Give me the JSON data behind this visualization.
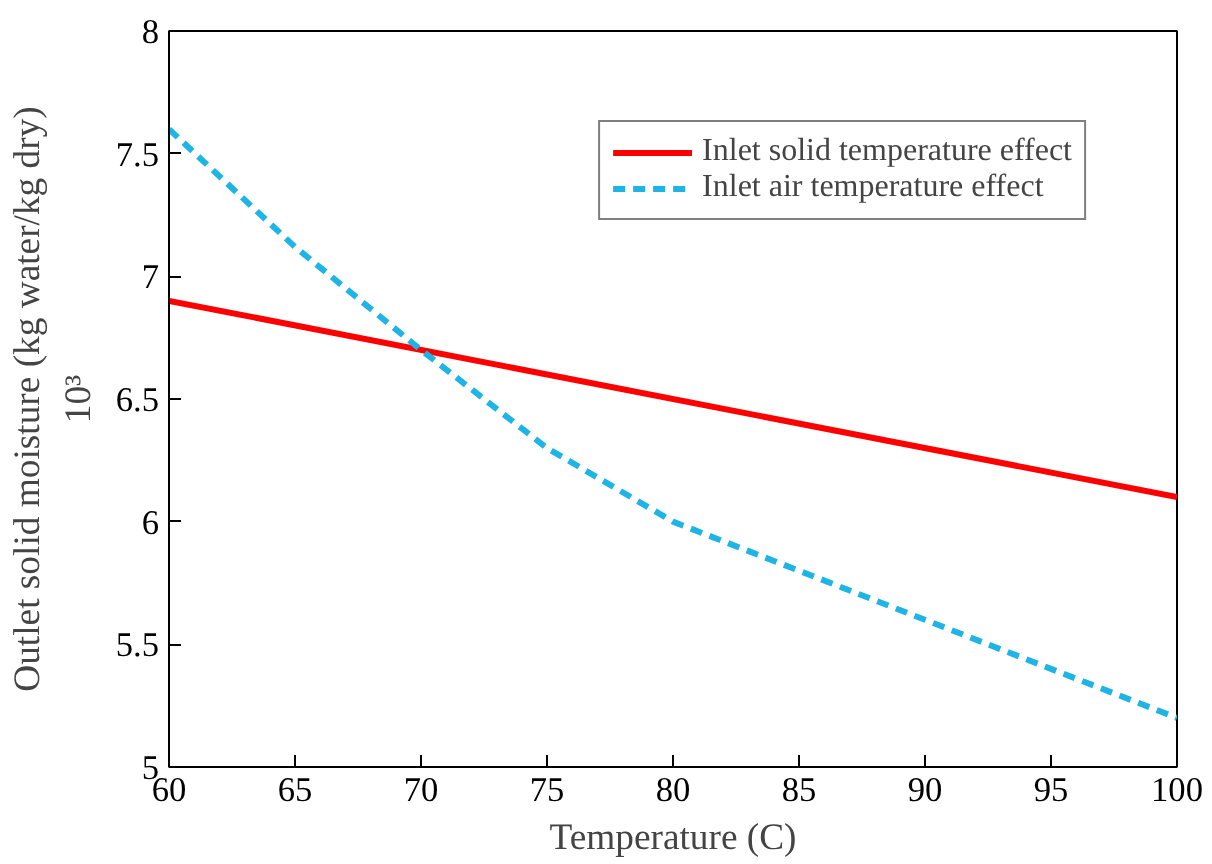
{
  "chart_data": {
    "type": "line",
    "xlabel": "Temperature (C)",
    "ylabel": "Outlet solid moisture (kg water/kg dry)\n10³",
    "xlim": [
      60,
      100
    ],
    "ylim": [
      5,
      8
    ],
    "xticks": [
      60,
      65,
      70,
      75,
      80,
      85,
      90,
      95,
      100
    ],
    "yticks": [
      5,
      5.5,
      6,
      6.5,
      7,
      7.5,
      8
    ],
    "grid": false,
    "legend": "top right",
    "series": [
      {
        "name": "Inlet solid temperature effect",
        "color": "#ff0000",
        "line_style": "solid",
        "x": [
          60,
          100
        ],
        "values": [
          6.9,
          6.1
        ]
      },
      {
        "name": "Inlet air temperature effect",
        "color": "#1eb4e6",
        "line_style": "dashed",
        "x": [
          60,
          65,
          70,
          75,
          80,
          85,
          90,
          95,
          100
        ],
        "values": [
          7.6,
          7.12,
          6.7,
          6.3,
          6.0,
          5.8,
          5.6,
          5.4,
          5.2
        ]
      }
    ]
  }
}
